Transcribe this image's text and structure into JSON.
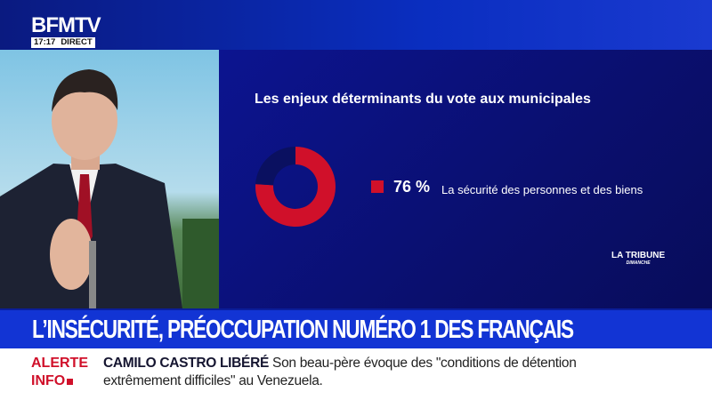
{
  "header": {
    "channel_logo": "BFMTV",
    "time": "17:17",
    "live_label": "DIRECT"
  },
  "panel": {
    "title": "Les enjeux déterminants du vote aux municipales",
    "source_logo": "LA TRIBUNE DIMANCHE",
    "legend_value": "76 %",
    "legend_label": "La sécurité des personnes et des biens"
  },
  "chart_data": {
    "type": "pie",
    "title": "Les enjeux déterminants du vote aux municipales",
    "categories": [
      "La sécurité des personnes et des biens"
    ],
    "values": [
      76
    ],
    "unit": "%",
    "colors": {
      "value": "#d0102a",
      "remainder": "#0a1060"
    }
  },
  "headline": "L’INSÉCURITÉ, PRÉOCCUPATION NUMÉRO 1 DES FRANÇAIS",
  "ticker": {
    "alert_line1": "ALERTE",
    "alert_line2": "INFO",
    "topic": "CAMILO CASTRO LIBÉRÉ",
    "text": "Son beau-père évoque des \"conditions de détention extrêmement difficiles\" au Venezuela."
  }
}
